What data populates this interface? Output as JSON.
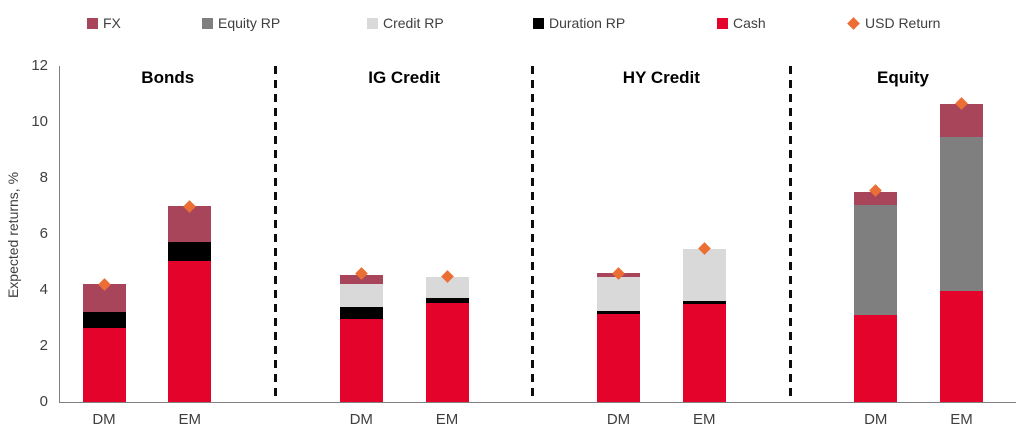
{
  "legend": {
    "items": [
      {
        "label": "FX",
        "color": "#A8455A",
        "shape": "square"
      },
      {
        "label": "Equity RP",
        "color": "#7F7F7F",
        "shape": "square"
      },
      {
        "label": "Credit RP",
        "color": "#D9D9D9",
        "shape": "square"
      },
      {
        "label": "Duration RP",
        "color": "#000000",
        "shape": "square"
      },
      {
        "label": "Cash",
        "color": "#E4032B",
        "shape": "square"
      },
      {
        "label": "USD Return",
        "color": "#EB6F35",
        "shape": "diamond"
      }
    ]
  },
  "colors": {
    "fx": "#A8455A",
    "equity_rp": "#7F7F7F",
    "credit_rp": "#D9D9D9",
    "duration_rp": "#000000",
    "cash": "#E4032B",
    "usd_return": "#EB6F35",
    "axis": "#808080",
    "text": "#3F3F3F",
    "divider": "#0D0D0D"
  },
  "chart_data": {
    "type": "bar",
    "stacked": true,
    "ylabel": "Expected returns, %",
    "ylim": [
      0,
      12
    ],
    "yticks": [
      0,
      2,
      4,
      6,
      8,
      10,
      12
    ],
    "grid": false,
    "legend_position": "top",
    "marker_series": "USD Return",
    "groups": [
      {
        "title": "Bonds",
        "bars": [
          {
            "label": "DM",
            "segments": [
              {
                "name": "Cash",
                "value": 2.65
              },
              {
                "name": "Duration RP",
                "value": 0.55
              },
              {
                "name": "FX",
                "value": 1.0
              }
            ],
            "usd_return": 4.2
          },
          {
            "label": "EM",
            "segments": [
              {
                "name": "Cash",
                "value": 5.05
              },
              {
                "name": "Duration RP",
                "value": 0.65
              },
              {
                "name": "FX",
                "value": 1.3
              }
            ],
            "usd_return": 7.0
          }
        ]
      },
      {
        "title": "IG Credit",
        "bars": [
          {
            "label": "DM",
            "segments": [
              {
                "name": "Cash",
                "value": 2.95
              },
              {
                "name": "Duration RP",
                "value": 0.45
              },
              {
                "name": "Credit RP",
                "value": 0.8
              },
              {
                "name": "FX",
                "value": 0.35
              }
            ],
            "usd_return": 4.6
          },
          {
            "label": "EM",
            "segments": [
              {
                "name": "Cash",
                "value": 3.55
              },
              {
                "name": "Duration RP",
                "value": 0.15
              },
              {
                "name": "Credit RP",
                "value": 0.75
              }
            ],
            "usd_return": 4.5
          }
        ]
      },
      {
        "title": "HY Credit",
        "bars": [
          {
            "label": "DM",
            "segments": [
              {
                "name": "Cash",
                "value": 3.15
              },
              {
                "name": "Duration RP",
                "value": 0.1
              },
              {
                "name": "Credit RP",
                "value": 1.2
              },
              {
                "name": "FX",
                "value": 0.15
              }
            ],
            "usd_return": 4.6
          },
          {
            "label": "EM",
            "segments": [
              {
                "name": "Cash",
                "value": 3.5
              },
              {
                "name": "Duration RP",
                "value": 0.1
              },
              {
                "name": "Credit RP",
                "value": 1.85
              }
            ],
            "usd_return": 5.5
          }
        ]
      },
      {
        "title": "Equity",
        "bars": [
          {
            "label": "DM",
            "segments": [
              {
                "name": "Cash",
                "value": 3.1
              },
              {
                "name": "Equity RP",
                "value": 3.95
              },
              {
                "name": "FX",
                "value": 0.45
              }
            ],
            "usd_return": 7.55
          },
          {
            "label": "EM",
            "segments": [
              {
                "name": "Cash",
                "value": 3.95
              },
              {
                "name": "Equity RP",
                "value": 5.5
              },
              {
                "name": "FX",
                "value": 1.2
              }
            ],
            "usd_return": 10.65
          }
        ]
      }
    ]
  }
}
